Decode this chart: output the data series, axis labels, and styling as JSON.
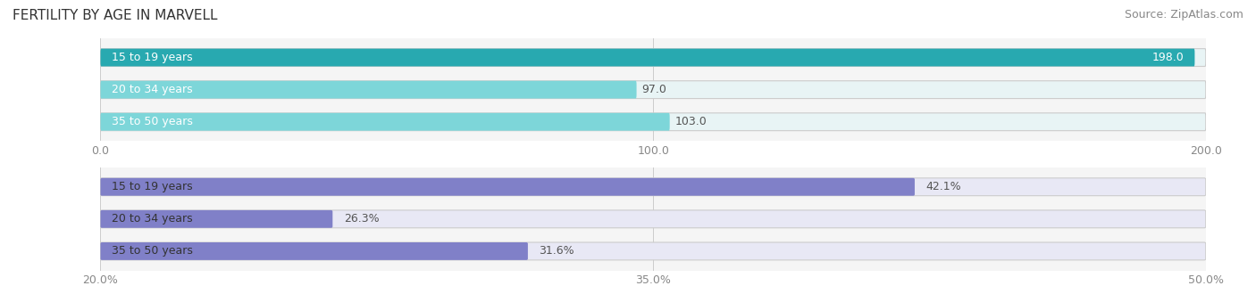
{
  "title": "FERTILITY BY AGE IN MARVELL",
  "source": "Source: ZipAtlas.com",
  "top_chart": {
    "categories": [
      "15 to 19 years",
      "20 to 34 years",
      "35 to 50 years"
    ],
    "values": [
      198.0,
      97.0,
      103.0
    ],
    "xmin": 0.0,
    "xmax": 200.0,
    "xticks": [
      0.0,
      100.0,
      200.0
    ],
    "bar_color_dark": "#28a9b0",
    "bar_color_light": "#7dd6d9",
    "bar_bg_color": "#e8f4f5"
  },
  "bottom_chart": {
    "categories": [
      "15 to 19 years",
      "20 to 34 years",
      "35 to 50 years"
    ],
    "values": [
      42.1,
      26.3,
      31.6
    ],
    "xmin": 20.0,
    "xmax": 50.0,
    "xticks": [
      20.0,
      35.0,
      50.0
    ],
    "xtick_labels": [
      "20.0%",
      "35.0%",
      "50.0%"
    ],
    "bar_color": "#8080c8",
    "bar_bg_color": "#e8e8f5"
  },
  "label_color": "#555555",
  "value_color_inside": "#ffffff",
  "value_color_outside": "#555555",
  "title_fontsize": 11,
  "source_fontsize": 9,
  "label_fontsize": 9,
  "value_fontsize": 9,
  "tick_fontsize": 9
}
